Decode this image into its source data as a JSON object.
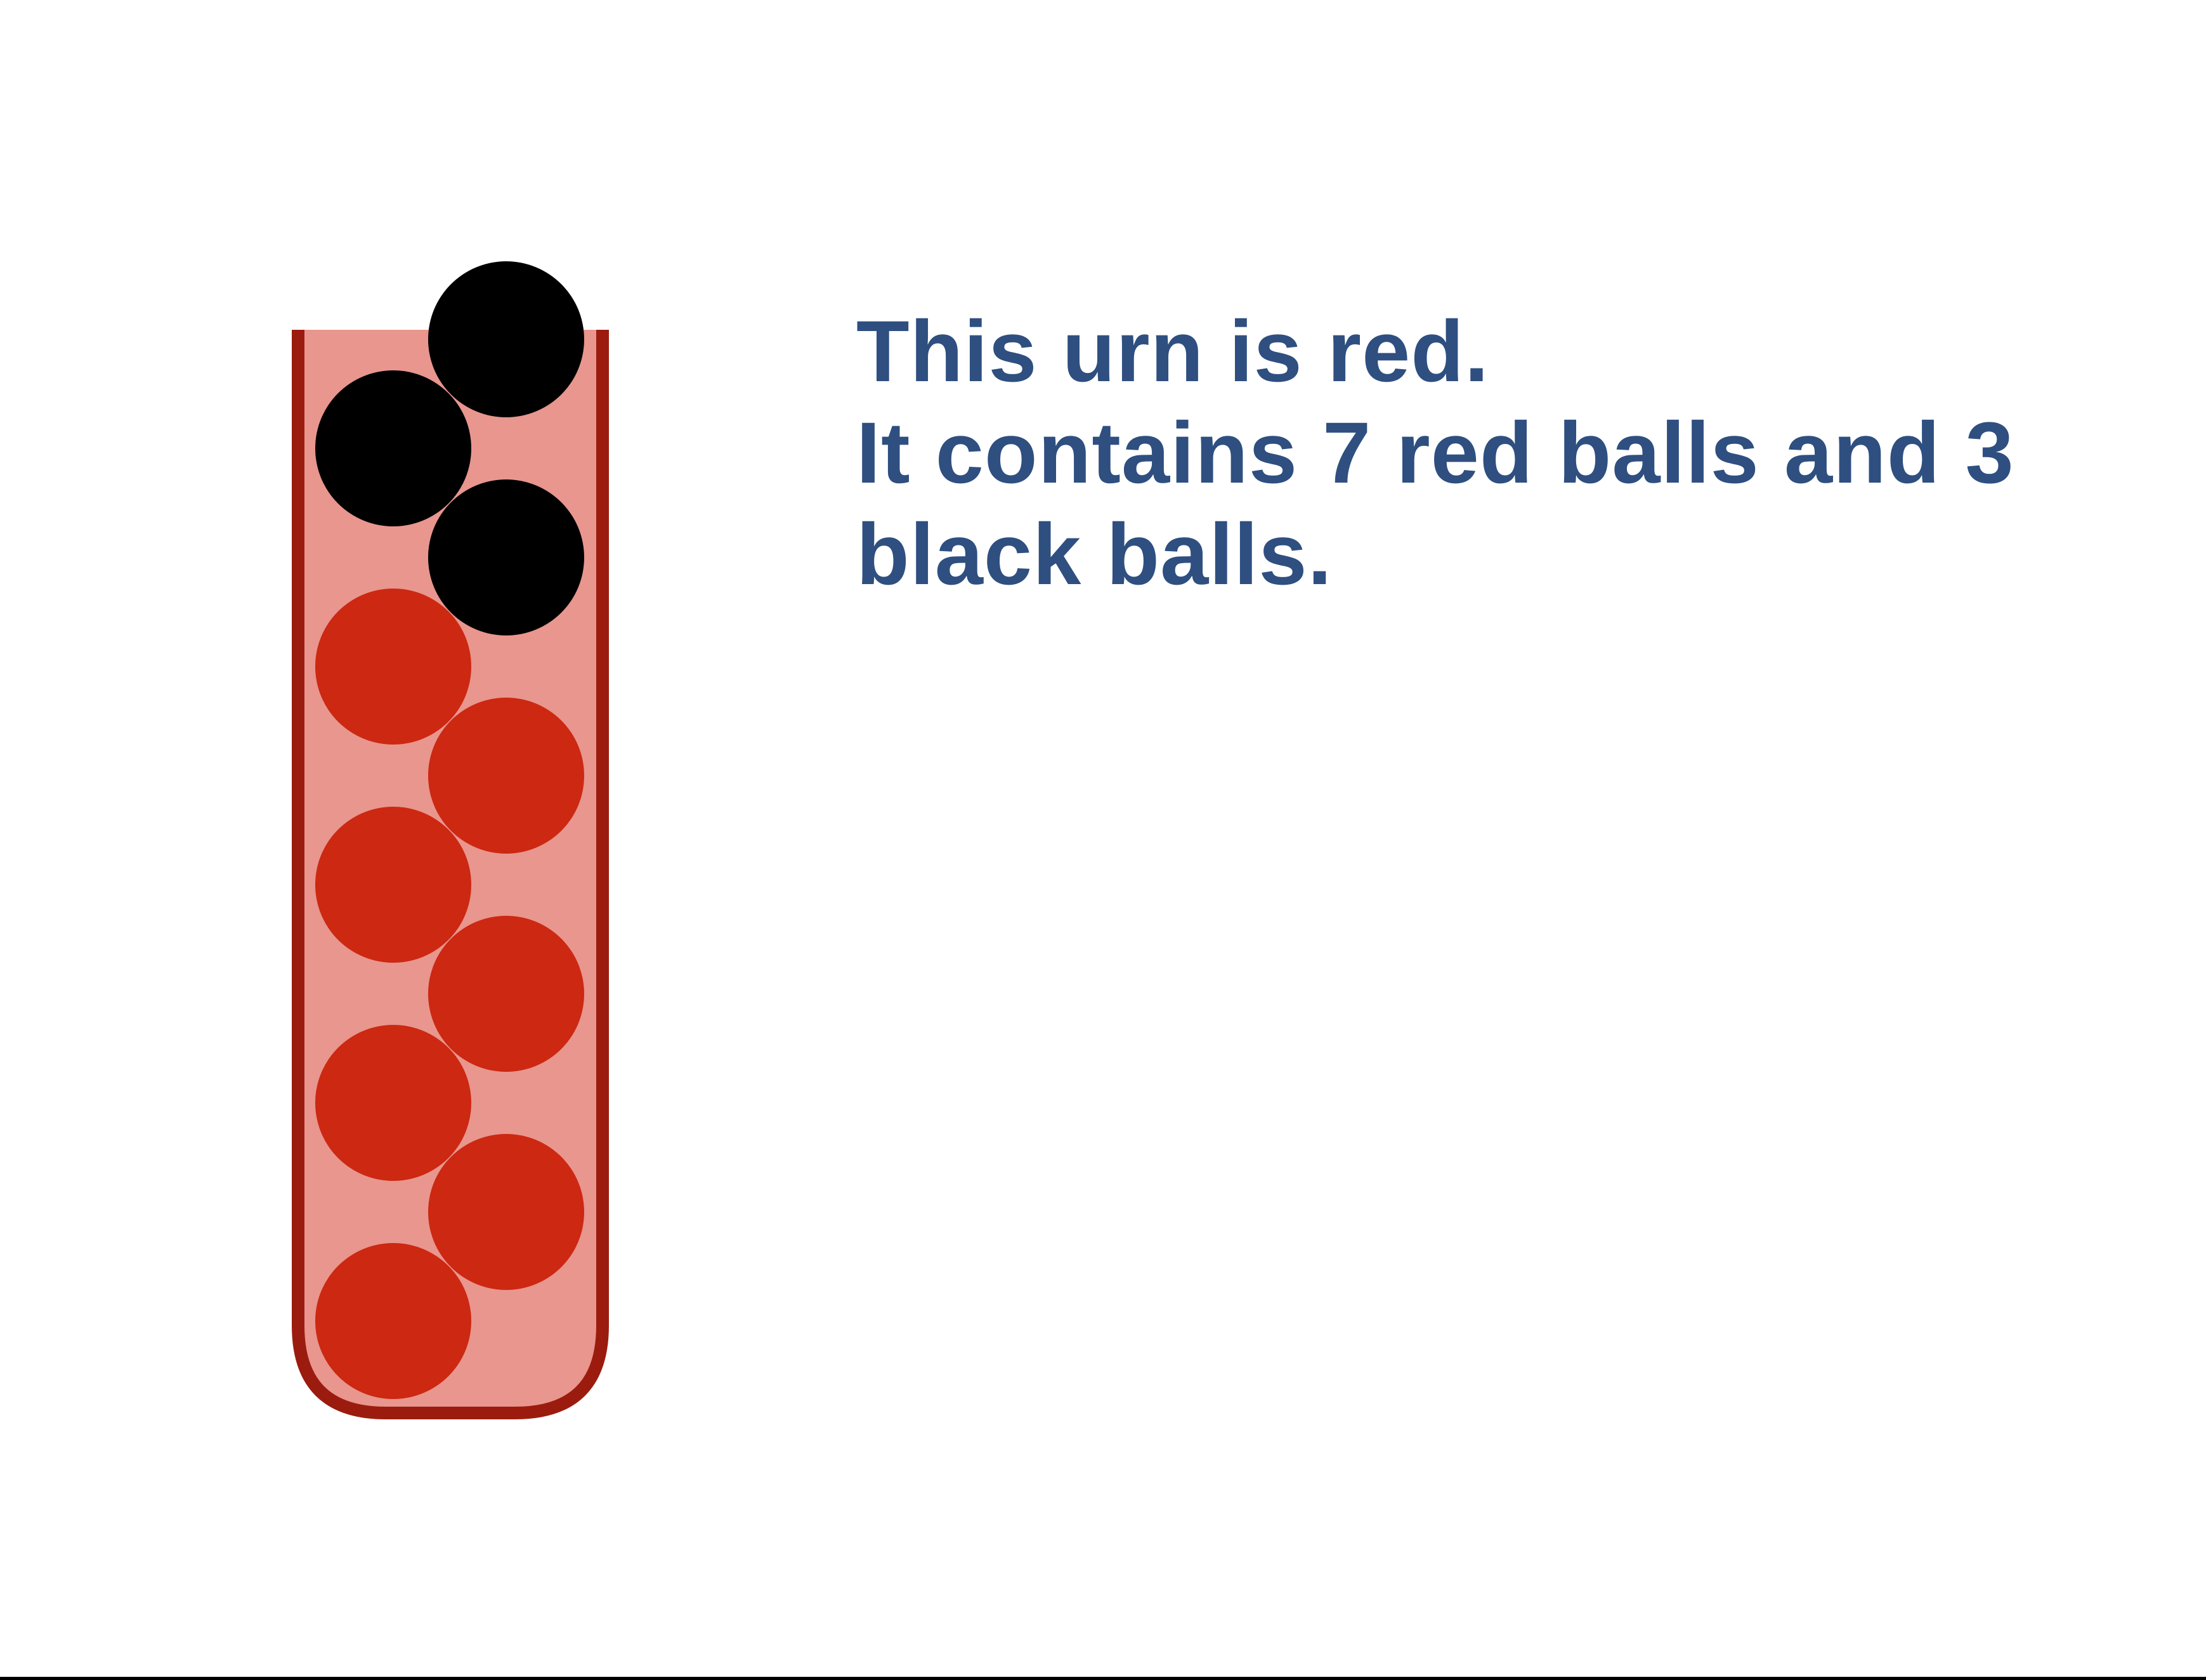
{
  "caption": {
    "line1": "This urn is red.",
    "line2": "It contains 7 red balls and 3",
    "line3": "black balls.",
    "color": "#2e4f80"
  },
  "urn": {
    "color": "red",
    "fill_color": "#e8968e",
    "outline_color": "#9b1c0e",
    "red_ball_count": 7,
    "black_ball_count": 3,
    "red_ball_color": "#cc2812",
    "black_ball_color": "#000000",
    "balls_bottom_to_top": [
      "red",
      "red",
      "red",
      "red",
      "red",
      "red",
      "red",
      "black",
      "black",
      "black"
    ]
  }
}
